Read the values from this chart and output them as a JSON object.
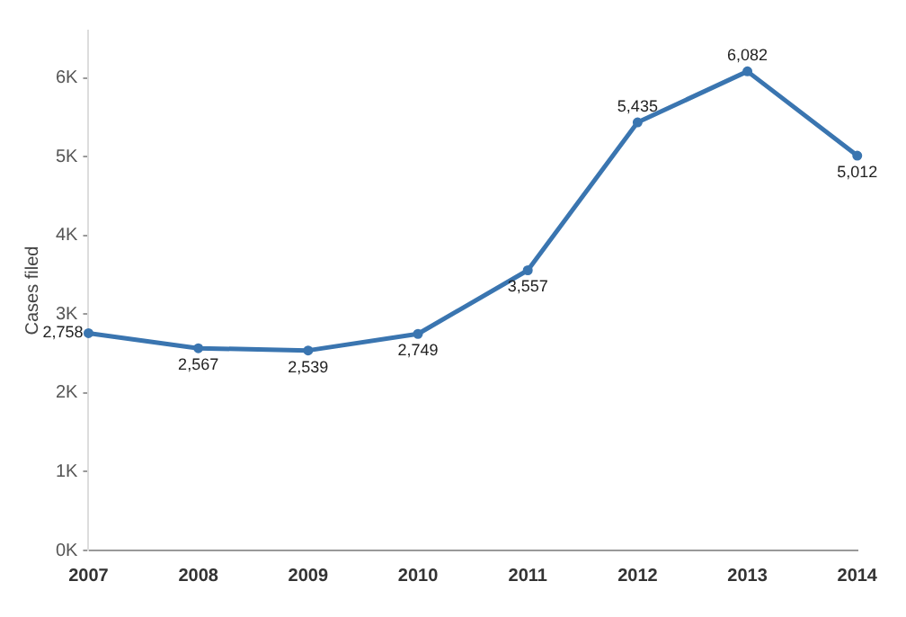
{
  "chart_data": {
    "type": "line",
    "ylabel": "Cases filed",
    "categories": [
      "2007",
      "2008",
      "2009",
      "2010",
      "2011",
      "2012",
      "2013",
      "2014"
    ],
    "series": [
      {
        "color": "#3a75b0",
        "values": [
          2758,
          2567,
          2539,
          2749,
          3557,
          5435,
          6082,
          5012
        ]
      }
    ],
    "value_labels": [
      "2,758",
      "2,567",
      "2,539",
      "2,749",
      "3,557",
      "5,435",
      "6,082",
      "5,012"
    ],
    "ylim": [
      0,
      6600
    ],
    "yticks": [
      {
        "value": 0,
        "label": "0K"
      },
      {
        "value": 1000,
        "label": "1K"
      },
      {
        "value": 2000,
        "label": "2K"
      },
      {
        "value": 3000,
        "label": "3K"
      },
      {
        "value": 4000,
        "label": "4K"
      },
      {
        "value": 5000,
        "label": "5K"
      },
      {
        "value": 6000,
        "label": "6K"
      }
    ],
    "grid": false,
    "legend": false,
    "marker": "circle",
    "line_style": "solid"
  }
}
